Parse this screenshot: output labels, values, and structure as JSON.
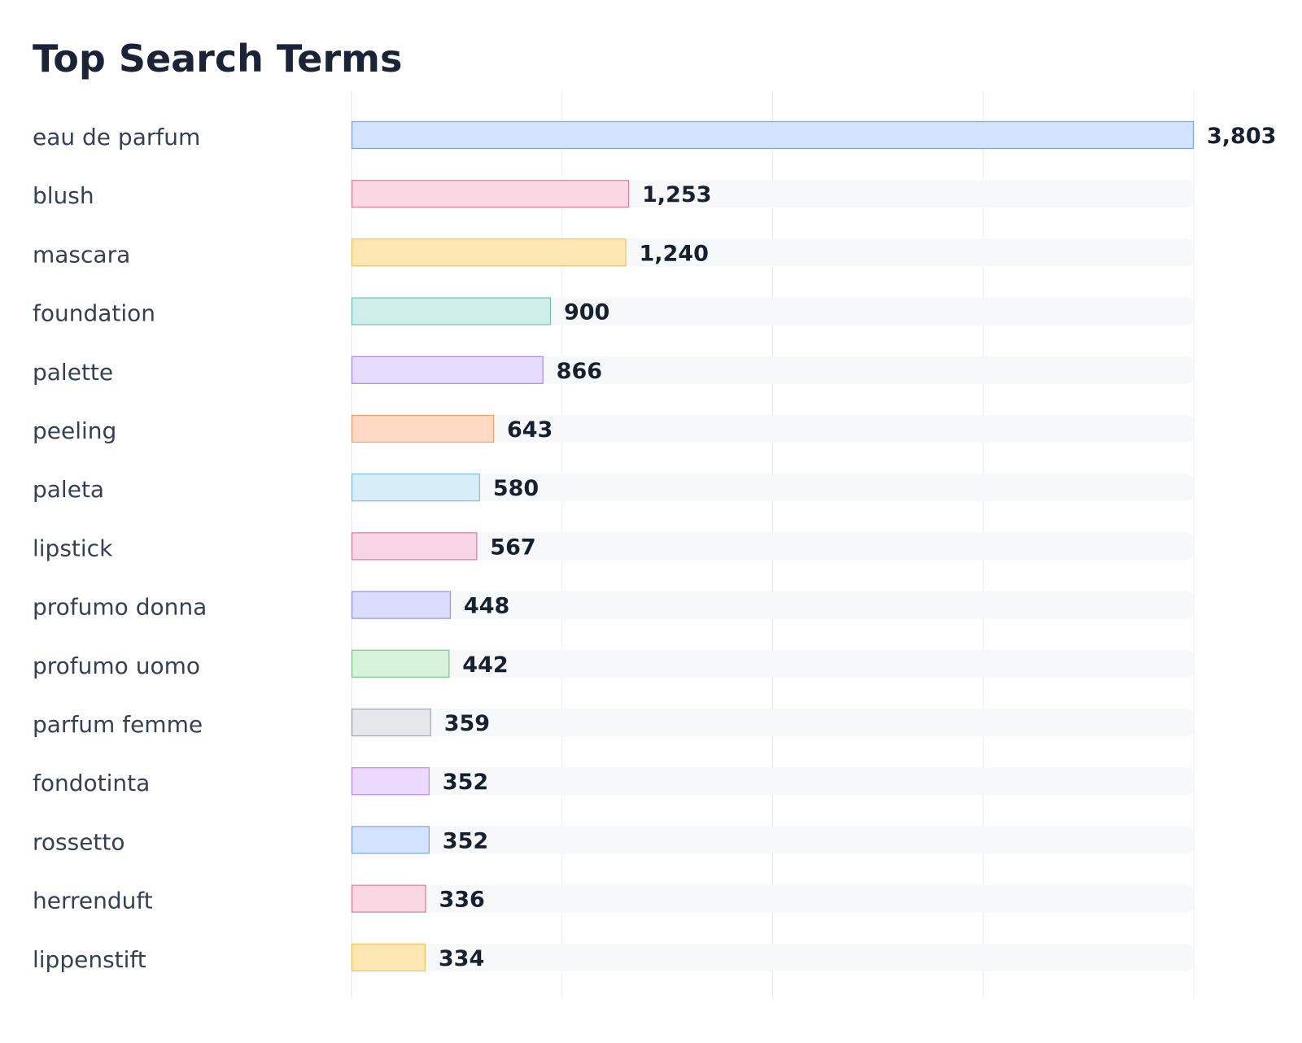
{
  "title": "Top Search Terms",
  "chart_data": {
    "type": "bar",
    "orientation": "horizontal",
    "title": "Top Search Terms",
    "xlabel": "",
    "ylabel": "",
    "xlim": [
      0,
      3803
    ],
    "grid": true,
    "legend": "none",
    "categories": [
      "eau de parfum",
      "blush",
      "mascara",
      "foundation",
      "palette",
      "peeling",
      "paleta",
      "lipstick",
      "profumo donna",
      "profumo uomo",
      "parfum femme",
      "fondotinta",
      "rossetto",
      "herrenduft",
      "lippenstift"
    ],
    "values": [
      3803,
      1253,
      1240,
      900,
      866,
      643,
      580,
      567,
      448,
      442,
      359,
      352,
      352,
      336,
      334
    ],
    "value_labels": [
      "3,803",
      "1,253",
      "1,240",
      "900",
      "866",
      "643",
      "580",
      "567",
      "448",
      "442",
      "359",
      "352",
      "352",
      "336",
      "334"
    ],
    "colors": [
      {
        "fill": "#d3e3fd",
        "stroke": "#7aa5e8"
      },
      {
        "fill": "#f9d8e3",
        "stroke": "#e07a9e"
      },
      {
        "fill": "#fde8b4",
        "stroke": "#eec45e"
      },
      {
        "fill": "#d0eee9",
        "stroke": "#6cc5b5"
      },
      {
        "fill": "#e6dcfe",
        "stroke": "#a68ae6"
      },
      {
        "fill": "#fedac4",
        "stroke": "#f2a06c"
      },
      {
        "fill": "#d7eef8",
        "stroke": "#7cc2de"
      },
      {
        "fill": "#f7d5e6",
        "stroke": "#d77aa4"
      },
      {
        "fill": "#dbdcfe",
        "stroke": "#8f93ea"
      },
      {
        "fill": "#d6f2d8",
        "stroke": "#7acb86"
      },
      {
        "fill": "#e6e7eb",
        "stroke": "#9ea3ad"
      },
      {
        "fill": "#ecdafe",
        "stroke": "#bc8ae8"
      },
      {
        "fill": "#d3e3fd",
        "stroke": "#7aa5e8"
      },
      {
        "fill": "#f9d8e3",
        "stroke": "#e07a9e"
      },
      {
        "fill": "#fde8b4",
        "stroke": "#eec45e"
      }
    ],
    "track_color": "#f7f8fa",
    "grid_color": "#ebedf0"
  }
}
